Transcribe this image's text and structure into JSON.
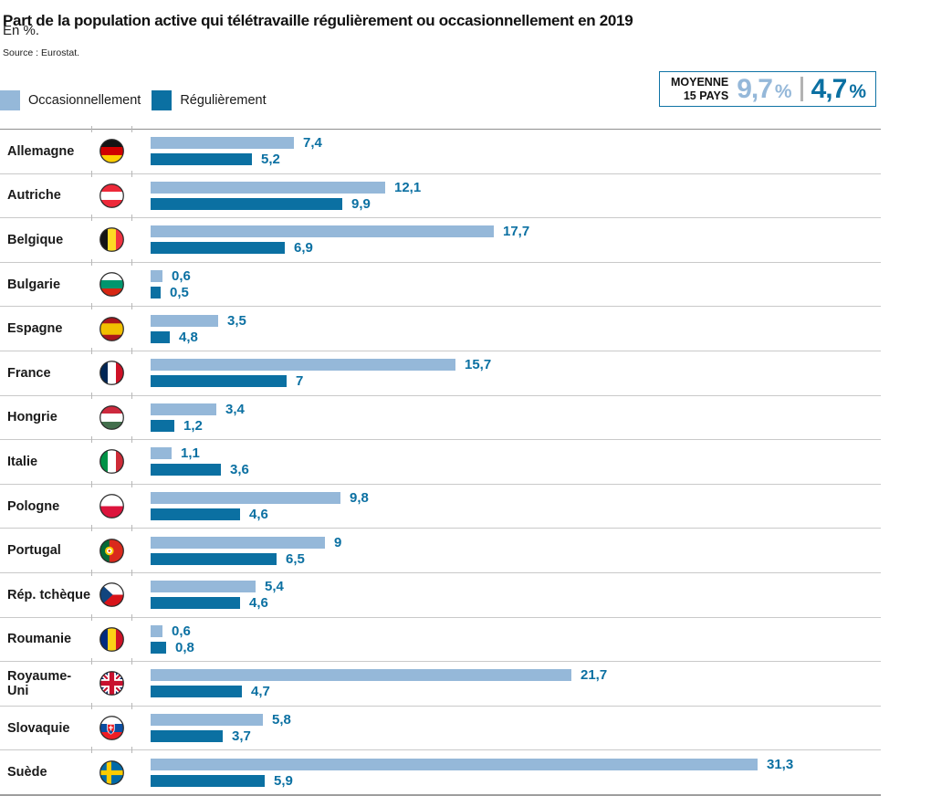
{
  "header": {
    "title": "Part de la population active qui télétravaille régulièrement ou occasionnellement en 2019",
    "subtitle": "En %.",
    "source": "Source : Eurostat."
  },
  "legend": {
    "occasional_label": "Occasionnellement",
    "regular_label": "Régulièrement"
  },
  "average_box": {
    "line1": "MOYENNE",
    "line2": "15 PAYS",
    "occasional_value": "9,7",
    "occasional_unit": "%",
    "regular_value": "4,7",
    "regular_unit": "%"
  },
  "colors": {
    "occasional": "#95b8d9",
    "regular": "#0b70a2",
    "value_label": "#0b70a2",
    "average_box_border": "#0f73a5",
    "row_line": "#c9c9c9"
  },
  "chart_data": {
    "type": "bar",
    "orientation": "horizontal",
    "unit": "%",
    "title": "Part de la population active qui télétravaille régulièrement ou occasionnellement en 2019",
    "source": "Eurostat",
    "xlim": [
      0,
      37.6
    ],
    "grid": false,
    "legend_position": "top-left",
    "categories": [
      "Allemagne",
      "Autriche",
      "Belgique",
      "Bulgarie",
      "Espagne",
      "France",
      "Hongrie",
      "Italie",
      "Pologne",
      "Portugal",
      "Rép. tchèque",
      "Roumanie",
      "Royaume-Uni",
      "Slovaquie",
      "Suède"
    ],
    "flags": [
      "germany",
      "austria",
      "belgium",
      "bulgaria",
      "spain",
      "france",
      "hungary",
      "italy",
      "poland",
      "portugal",
      "czechia",
      "romania",
      "united-kingdom",
      "slovakia",
      "sweden"
    ],
    "series": [
      {
        "name": "Occasionnellement",
        "color": "#95b8d9",
        "values": [
          7.4,
          12.1,
          17.7,
          0.6,
          3.5,
          15.7,
          3.4,
          1.1,
          9.8,
          9,
          5.4,
          0.6,
          21.7,
          5.8,
          31.3
        ],
        "labels": [
          "7,4",
          "12,1",
          "17,7",
          "0,6",
          "3,5",
          "15,7",
          "3,4",
          "1,1",
          "9,8",
          "9",
          "5,4",
          "0,6",
          "21,7",
          "5,8",
          "31,3"
        ]
      },
      {
        "name": "Régulièrement",
        "color": "#0b70a2",
        "values": [
          5.2,
          9.9,
          6.9,
          0.5,
          4.8,
          7,
          1.2,
          3.6,
          4.6,
          6.5,
          4.6,
          0.8,
          4.7,
          3.7,
          5.9
        ],
        "labels": [
          "5,2",
          "9,9",
          "6,9",
          "0,5",
          "4,8",
          "7",
          "1,2",
          "3,6",
          "4,6",
          "6,5",
          "4,6",
          "0,8",
          "4,7",
          "3,7",
          "5,9"
        ],
        "bar_lengths_as_drawn": [
          5.2,
          9.9,
          6.9,
          0.5,
          1.0,
          7,
          1.2,
          3.6,
          4.6,
          6.5,
          4.6,
          0.8,
          4.7,
          3.7,
          5.9
        ]
      }
    ],
    "average": {
      "label": "MOYENNE 15 PAYS",
      "occasionnellement": 9.7,
      "regulierement": 4.7
    }
  }
}
